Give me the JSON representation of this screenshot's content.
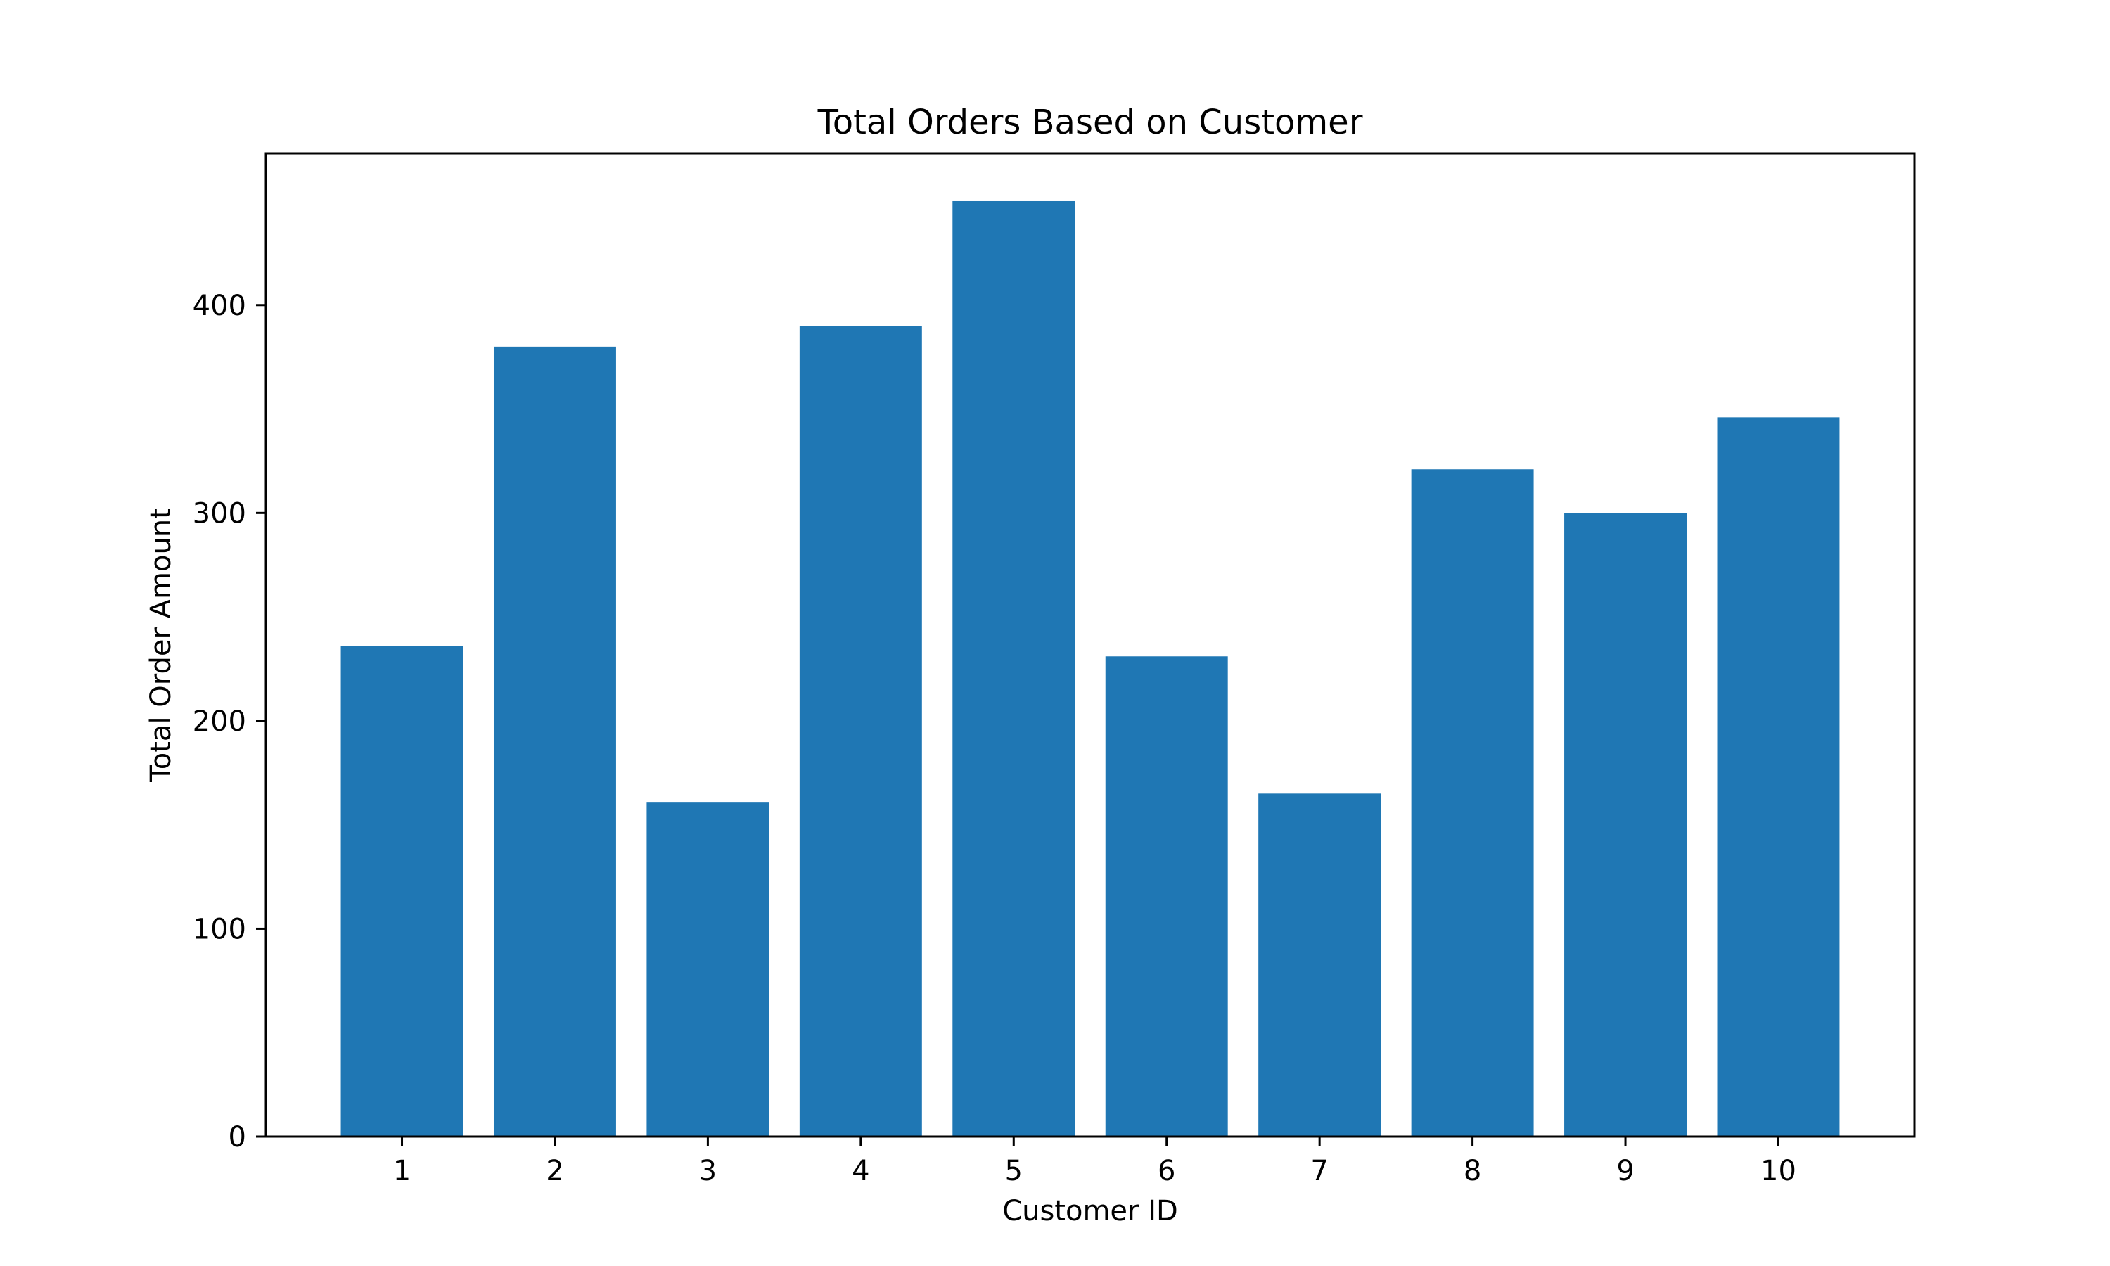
{
  "chart_data": {
    "type": "bar",
    "title": "Total Orders Based on Customer",
    "xlabel": "Customer ID",
    "ylabel": "Total Order Amount",
    "categories": [
      "1",
      "2",
      "3",
      "4",
      "5",
      "6",
      "7",
      "8",
      "9",
      "10"
    ],
    "values": [
      236,
      380,
      161,
      390,
      450,
      231,
      165,
      321,
      300,
      346
    ],
    "ylim": [
      0,
      473
    ],
    "yticks": [
      0,
      100,
      200,
      300,
      400
    ],
    "ytick_labels": [
      "0",
      "100",
      "200",
      "300",
      "400"
    ],
    "grid": false,
    "legend": "none",
    "bar_color": "#1f77b4"
  }
}
